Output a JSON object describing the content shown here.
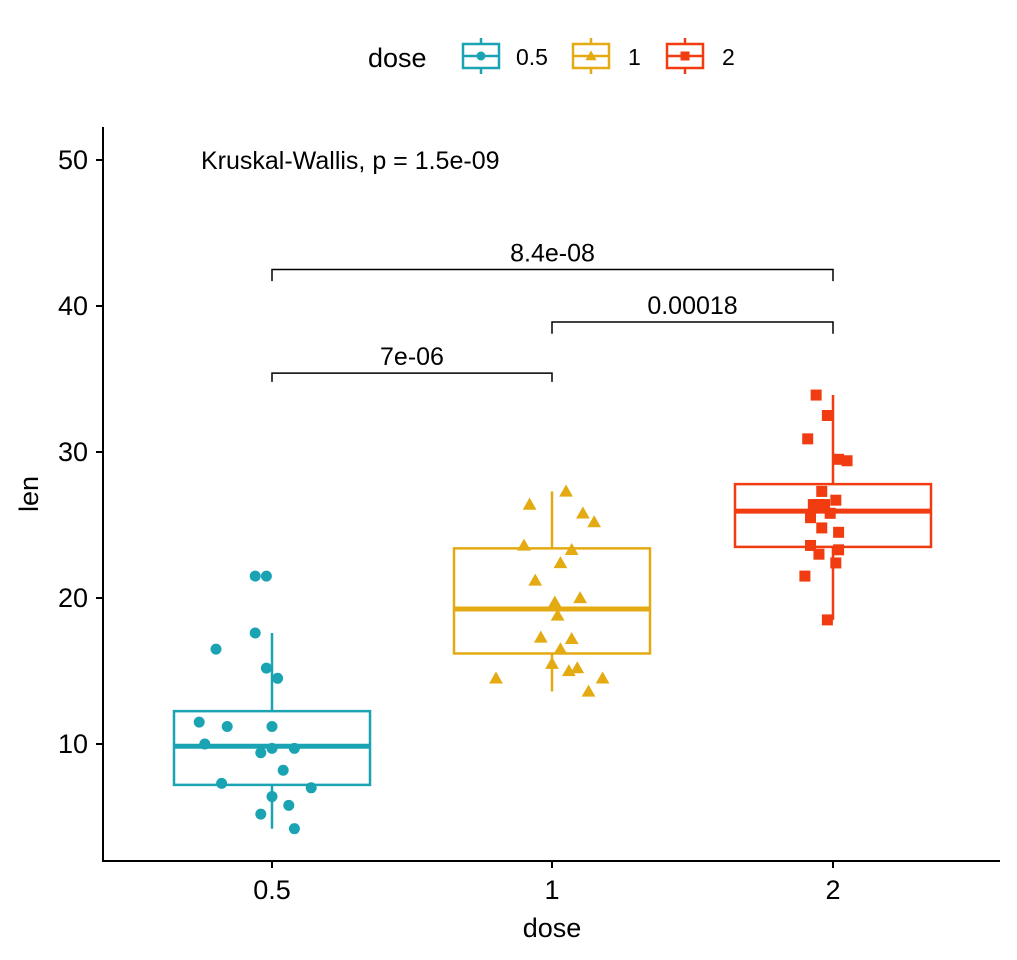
{
  "chart_data": {
    "type": "boxplot",
    "title": "",
    "xlabel": "dose",
    "ylabel": "len",
    "categories": [
      "0.5",
      "1",
      "2"
    ],
    "yticks": [
      10,
      20,
      30,
      40,
      50
    ],
    "ylim": [
      2.3,
      52.5
    ],
    "grid": false,
    "legend": {
      "title": "dose",
      "position": "top",
      "entries": [
        "0.5",
        "1",
        "2"
      ]
    },
    "colors": [
      "#1AA3B3",
      "#E3AA12",
      "#F03C10"
    ],
    "markers": [
      "circle",
      "triangle",
      "square"
    ],
    "boxes": [
      {
        "category": "0.5",
        "q1": 7.2,
        "median": 9.85,
        "q3": 12.25,
        "whisker_low": 4.2,
        "whisker_high": 17.6
      },
      {
        "category": "1",
        "q1": 16.2,
        "median": 19.25,
        "q3": 23.4,
        "whisker_low": 13.6,
        "whisker_high": 27.3
      },
      {
        "category": "2",
        "q1": 23.5,
        "median": 25.95,
        "q3": 27.8,
        "whisker_low": 18.5,
        "whisker_high": 33.9
      }
    ],
    "points": [
      {
        "category": "0.5",
        "x": [
          0.47,
          0.49,
          0.47,
          0.49,
          0.4,
          0.51,
          0.42,
          0.5,
          0.37,
          0.38,
          0.5,
          0.48,
          0.54,
          0.52,
          0.41,
          0.5,
          0.57,
          0.53,
          0.48,
          0.54
        ],
        "y": [
          21.5,
          21.5,
          17.6,
          15.2,
          16.5,
          14.5,
          11.2,
          11.2,
          11.5,
          10.0,
          9.7,
          9.4,
          9.7,
          8.2,
          7.3,
          6.4,
          7.0,
          5.8,
          5.2,
          4.2
        ]
      },
      {
        "category": "1",
        "x": [
          1.05,
          0.96,
          1.11,
          1.15,
          0.95,
          1.07,
          1.03,
          0.97,
          1.01,
          1.1,
          1.02,
          0.98,
          1.03,
          1.07,
          1.09,
          1.18,
          1.0,
          1.13,
          0.9,
          1.06
        ],
        "y": [
          27.3,
          26.4,
          25.8,
          25.2,
          23.6,
          23.3,
          22.4,
          21.2,
          19.7,
          20.0,
          18.8,
          17.3,
          16.5,
          17.2,
          15.2,
          14.5,
          15.5,
          13.6,
          14.5,
          15.0
        ]
      },
      {
        "category": "2",
        "x": [
          1.94,
          1.98,
          1.91,
          2.05,
          2.02,
          1.96,
          1.95,
          1.97,
          2.01,
          1.92,
          1.99,
          1.93,
          1.96,
          2.02,
          2.02,
          1.92,
          1.95,
          2.01,
          1.98,
          1.9
        ],
        "y": [
          33.9,
          32.5,
          30.9,
          29.4,
          29.5,
          27.3,
          26.4,
          26.4,
          26.7,
          25.5,
          25.8,
          26.4,
          24.8,
          24.5,
          23.3,
          23.6,
          23.0,
          22.4,
          18.5,
          21.5
        ]
      }
    ],
    "annotations": {
      "test_label": "Kruskal-Wallis, p = 1.5e-09",
      "test_y": 50,
      "comparisons": [
        {
          "from": "0.5",
          "to": "1",
          "label": "7e-06",
          "y": 35.4,
          "tick_bottom": 34.8
        },
        {
          "from": "1",
          "to": "2",
          "label": "0.00018",
          "y": 38.9,
          "tick_bottom": 38.1
        },
        {
          "from": "0.5",
          "to": "2",
          "label": "8.4e-08",
          "y": 42.5,
          "tick_bottom": 41.7
        }
      ]
    }
  }
}
